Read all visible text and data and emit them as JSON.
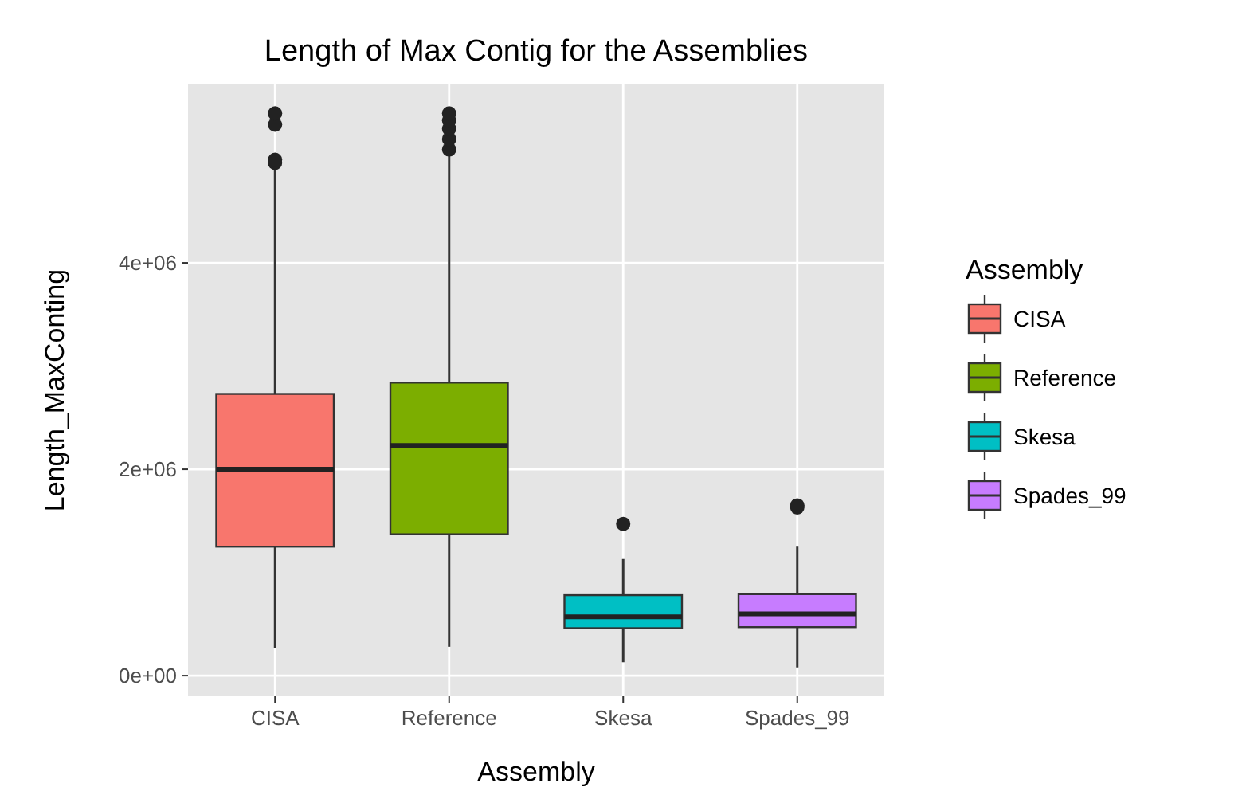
{
  "chart_data": {
    "type": "box",
    "title": "Length of Max Contig for the Assemblies",
    "xlabel": "Assembly",
    "ylabel": "Length_MaxConting",
    "legend_title": "Assembly",
    "categories": [
      "CISA",
      "Reference",
      "Skesa",
      "Spades_99"
    ],
    "series": [
      {
        "name": "CISA",
        "color": "#f8766d",
        "boxes": [
          {
            "low": 270000,
            "q1": 1250000,
            "median": 2000000,
            "q3": 2730000,
            "high": 4900000,
            "outliers": [
              4970000,
              5000000,
              5340000,
              5450000
            ]
          },
          null,
          null,
          null
        ]
      },
      {
        "name": "Reference",
        "color": "#7cae00",
        "boxes": [
          null,
          {
            "low": 280000,
            "q1": 1370000,
            "median": 2230000,
            "q3": 2840000,
            "high": 5050000,
            "outliers": [
              5100000,
              5200000,
              5300000,
              5380000,
              5450000
            ]
          },
          null,
          null
        ]
      },
      {
        "name": "Skesa",
        "color": "#00bfc4",
        "boxes": [
          null,
          null,
          {
            "low": 130000,
            "q1": 460000,
            "median": 570000,
            "q3": 780000,
            "high": 1130000,
            "outliers": [
              1470000
            ]
          },
          null
        ]
      },
      {
        "name": "Spades_99",
        "color": "#c77cff",
        "boxes": [
          null,
          null,
          null,
          {
            "low": 80000,
            "q1": 470000,
            "median": 600000,
            "q3": 790000,
            "high": 1250000,
            "outliers": [
              1630000,
              1650000
            ]
          }
        ]
      }
    ],
    "ylim": [
      -200000,
      5730000
    ],
    "yticks": [
      {
        "value": 0,
        "label": "0e+00"
      },
      {
        "value": 2000000,
        "label": "2e+06"
      },
      {
        "value": 4000000,
        "label": "4e+06"
      }
    ],
    "grid": true,
    "legend": "right"
  }
}
